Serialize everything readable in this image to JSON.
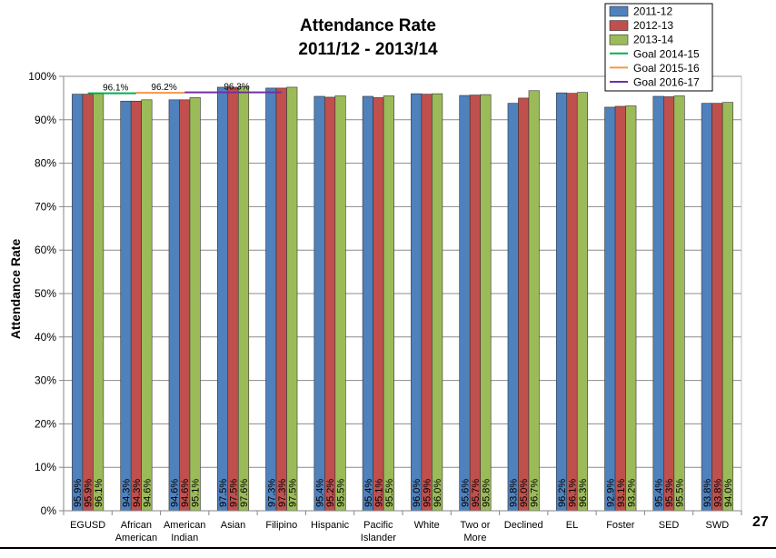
{
  "page_number": "27",
  "chart_data": {
    "type": "bar",
    "title": "Attendance Rate",
    "subtitle": "2011/12 - 2013/14",
    "ylabel": "Attendance Rate",
    "xlabel": "",
    "ylim": [
      0,
      100
    ],
    "yticks": [
      "0%",
      "10%",
      "20%",
      "30%",
      "40%",
      "50%",
      "60%",
      "70%",
      "80%",
      "90%",
      "100%"
    ],
    "grid": true,
    "legend_position": "top-right",
    "categories": [
      "EGUSD",
      "African American",
      "American Indian",
      "Asian",
      "Filipino",
      "Hispanic",
      "Pacific Islander",
      "White",
      "Two or More",
      "Declined",
      "EL",
      "Foster",
      "SED",
      "SWD"
    ],
    "category_lines": [
      [
        "EGUSD"
      ],
      [
        "African",
        "American"
      ],
      [
        "American",
        "Indian"
      ],
      [
        "Asian"
      ],
      [
        "Filipino"
      ],
      [
        "Hispanic"
      ],
      [
        "Pacific",
        "Islander"
      ],
      [
        "White"
      ],
      [
        "Two or",
        "More"
      ],
      [
        "Declined"
      ],
      [
        "EL"
      ],
      [
        "Foster"
      ],
      [
        "SED"
      ],
      [
        "SWD"
      ]
    ],
    "series": [
      {
        "name": "2011-12",
        "color": "#4F81BD",
        "values": [
          95.9,
          94.3,
          94.6,
          97.5,
          97.3,
          95.4,
          95.4,
          96.0,
          95.6,
          93.8,
          96.2,
          92.9,
          95.4,
          93.8
        ],
        "labels": [
          "95.9%",
          "94.3%",
          "94.6%",
          "97.5%",
          "97.3%",
          "95.4%",
          "95.4%",
          "96.0%",
          "95.6%",
          "93.8%",
          "96.2%",
          "92.9%",
          "95.4%",
          "93.8%"
        ]
      },
      {
        "name": "2012-13",
        "color": "#C0504D",
        "values": [
          95.9,
          94.3,
          94.6,
          97.5,
          97.3,
          95.2,
          95.1,
          95.9,
          95.7,
          95.0,
          96.1,
          93.1,
          95.3,
          93.8
        ],
        "labels": [
          "95.9%",
          "94.3%",
          "94.6%",
          "97.5%",
          "97.3%",
          "95.2%",
          "95.1%",
          "95.9%",
          "95.7%",
          "95.0%",
          "96.1%",
          "93.1%",
          "95.3%",
          "93.8%"
        ]
      },
      {
        "name": "2013-14",
        "color": "#9BBB59",
        "values": [
          96.1,
          94.6,
          95.1,
          97.6,
          97.5,
          95.5,
          95.5,
          96.0,
          95.8,
          96.7,
          96.3,
          93.2,
          95.5,
          94.0
        ],
        "labels": [
          "96.1%",
          "94.6%",
          "95.1%",
          "97.6%",
          "97.5%",
          "95.5%",
          "95.5%",
          "96.0%",
          "95.8%",
          "96.7%",
          "96.3%",
          "93.2%",
          "95.5%",
          "94.0%"
        ]
      }
    ],
    "goals": [
      {
        "name": "Goal 2014-15",
        "color": "#00B050",
        "value": 96.1,
        "label": "96.1%",
        "from_category": 0,
        "to_category": 1
      },
      {
        "name": "Goal 2015-16",
        "color": "#F79646",
        "value": 96.2,
        "label": "96.2%",
        "from_category": 1,
        "to_category": 2
      },
      {
        "name": "Goal 2016-17",
        "color": "#7030A0",
        "value": 96.3,
        "label": "96.3%",
        "from_category": 2,
        "to_category": 4
      }
    ]
  }
}
